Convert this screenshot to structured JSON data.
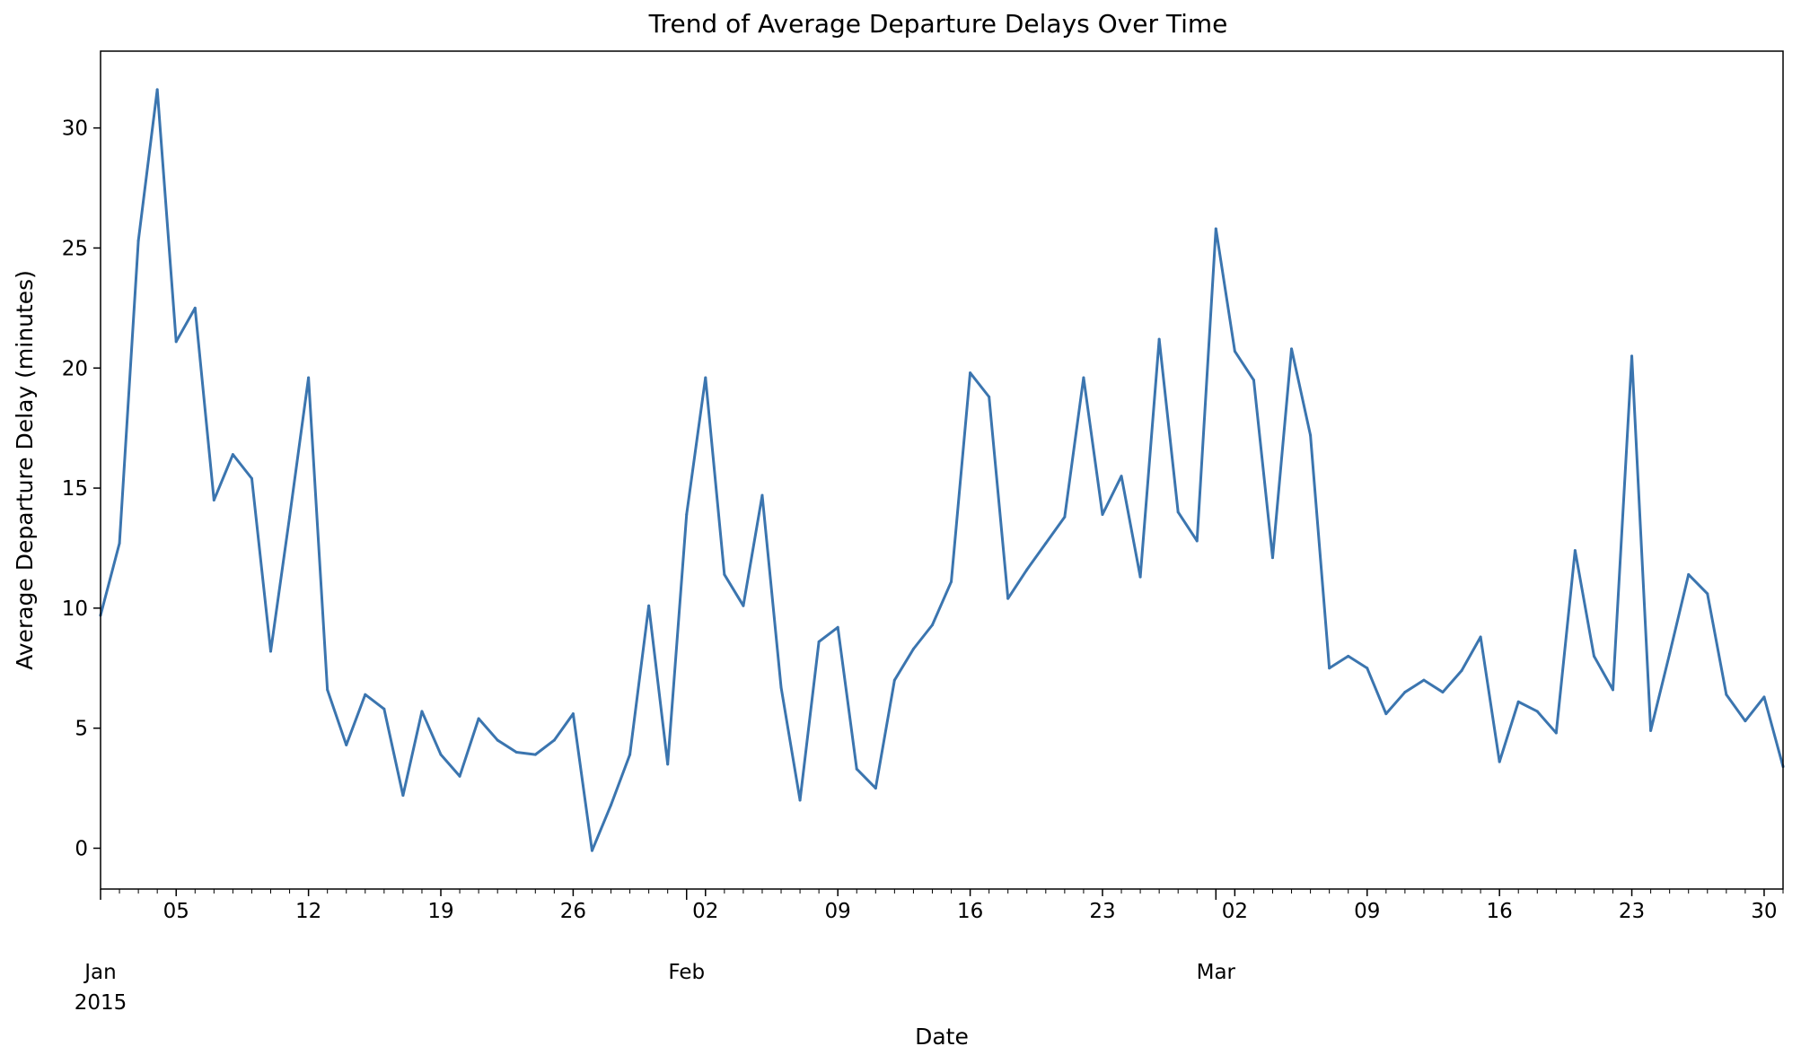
{
  "chart_data": {
    "type": "line",
    "title": "Trend of Average Departure Delays Over Time",
    "xlabel": "Date",
    "ylabel": "Average Departure Delay (minutes)",
    "xlim": [
      "2015-01-01",
      "2015-03-31"
    ],
    "ylim": [
      -1.7,
      33.2
    ],
    "yticks": [
      0,
      5,
      10,
      15,
      20,
      25,
      30
    ],
    "xticks_minor": [
      {
        "date": "2015-01-05",
        "label": "05"
      },
      {
        "date": "2015-01-12",
        "label": "12"
      },
      {
        "date": "2015-01-19",
        "label": "19"
      },
      {
        "date": "2015-01-26",
        "label": "26"
      },
      {
        "date": "2015-02-02",
        "label": "02"
      },
      {
        "date": "2015-02-09",
        "label": "09"
      },
      {
        "date": "2015-02-16",
        "label": "16"
      },
      {
        "date": "2015-02-23",
        "label": "23"
      },
      {
        "date": "2015-03-02",
        "label": "02"
      },
      {
        "date": "2015-03-09",
        "label": "09"
      },
      {
        "date": "2015-03-16",
        "label": "16"
      },
      {
        "date": "2015-03-23",
        "label": "23"
      },
      {
        "date": "2015-03-30",
        "label": "30"
      }
    ],
    "xticks_major": [
      {
        "date": "2015-01-01",
        "label": "Jan",
        "sublabel": "2015"
      },
      {
        "date": "2015-02-01",
        "label": "Feb",
        "sublabel": ""
      },
      {
        "date": "2015-03-01",
        "label": "Mar",
        "sublabel": ""
      }
    ],
    "grid": false,
    "series": [
      {
        "color": "#3b75af",
        "x": [
          "2015-01-01",
          "2015-01-02",
          "2015-01-03",
          "2015-01-04",
          "2015-01-05",
          "2015-01-06",
          "2015-01-07",
          "2015-01-08",
          "2015-01-09",
          "2015-01-10",
          "2015-01-11",
          "2015-01-12",
          "2015-01-13",
          "2015-01-14",
          "2015-01-15",
          "2015-01-16",
          "2015-01-17",
          "2015-01-18",
          "2015-01-19",
          "2015-01-20",
          "2015-01-21",
          "2015-01-22",
          "2015-01-23",
          "2015-01-24",
          "2015-01-25",
          "2015-01-26",
          "2015-01-27",
          "2015-01-28",
          "2015-01-29",
          "2015-01-30",
          "2015-01-31",
          "2015-02-01",
          "2015-02-02",
          "2015-02-03",
          "2015-02-04",
          "2015-02-05",
          "2015-02-06",
          "2015-02-07",
          "2015-02-08",
          "2015-02-09",
          "2015-02-10",
          "2015-02-11",
          "2015-02-12",
          "2015-02-13",
          "2015-02-14",
          "2015-02-15",
          "2015-02-16",
          "2015-02-17",
          "2015-02-18",
          "2015-02-19",
          "2015-02-20",
          "2015-02-21",
          "2015-02-22",
          "2015-02-23",
          "2015-02-24",
          "2015-02-25",
          "2015-02-26",
          "2015-02-27",
          "2015-02-28",
          "2015-03-01",
          "2015-03-02",
          "2015-03-03",
          "2015-03-04",
          "2015-03-05",
          "2015-03-06",
          "2015-03-07",
          "2015-03-08",
          "2015-03-09",
          "2015-03-10",
          "2015-03-11",
          "2015-03-12",
          "2015-03-13",
          "2015-03-14",
          "2015-03-15",
          "2015-03-16",
          "2015-03-17",
          "2015-03-18",
          "2015-03-19",
          "2015-03-20",
          "2015-03-21",
          "2015-03-22",
          "2015-03-23",
          "2015-03-24",
          "2015-03-25",
          "2015-03-26",
          "2015-03-27",
          "2015-03-28",
          "2015-03-29",
          "2015-03-30",
          "2015-03-31"
        ],
        "values": [
          9.7,
          12.7,
          25.3,
          31.6,
          21.1,
          22.5,
          14.5,
          16.4,
          15.4,
          8.2,
          13.8,
          19.6,
          6.6,
          4.3,
          6.4,
          5.8,
          2.2,
          5.7,
          3.9,
          3.0,
          5.4,
          4.5,
          4.0,
          3.9,
          4.5,
          5.6,
          -0.1,
          1.8,
          3.9,
          10.1,
          3.5,
          13.9,
          19.6,
          11.4,
          10.1,
          14.7,
          6.7,
          2.0,
          8.6,
          9.2,
          3.3,
          2.5,
          7.0,
          8.3,
          9.3,
          11.1,
          19.8,
          18.8,
          10.4,
          11.6,
          12.7,
          13.8,
          19.6,
          13.9,
          15.5,
          11.3,
          21.2,
          14.0,
          12.8,
          25.8,
          20.7,
          19.5,
          12.1,
          20.8,
          17.2,
          7.5,
          8.0,
          7.5,
          5.6,
          6.5,
          7.0,
          6.5,
          7.4,
          8.8,
          3.6,
          6.1,
          5.7,
          4.8,
          12.4,
          8.0,
          6.6,
          20.5,
          4.9,
          8.1,
          11.4,
          10.6,
          6.4,
          5.3,
          6.3,
          3.4
        ]
      }
    ]
  }
}
